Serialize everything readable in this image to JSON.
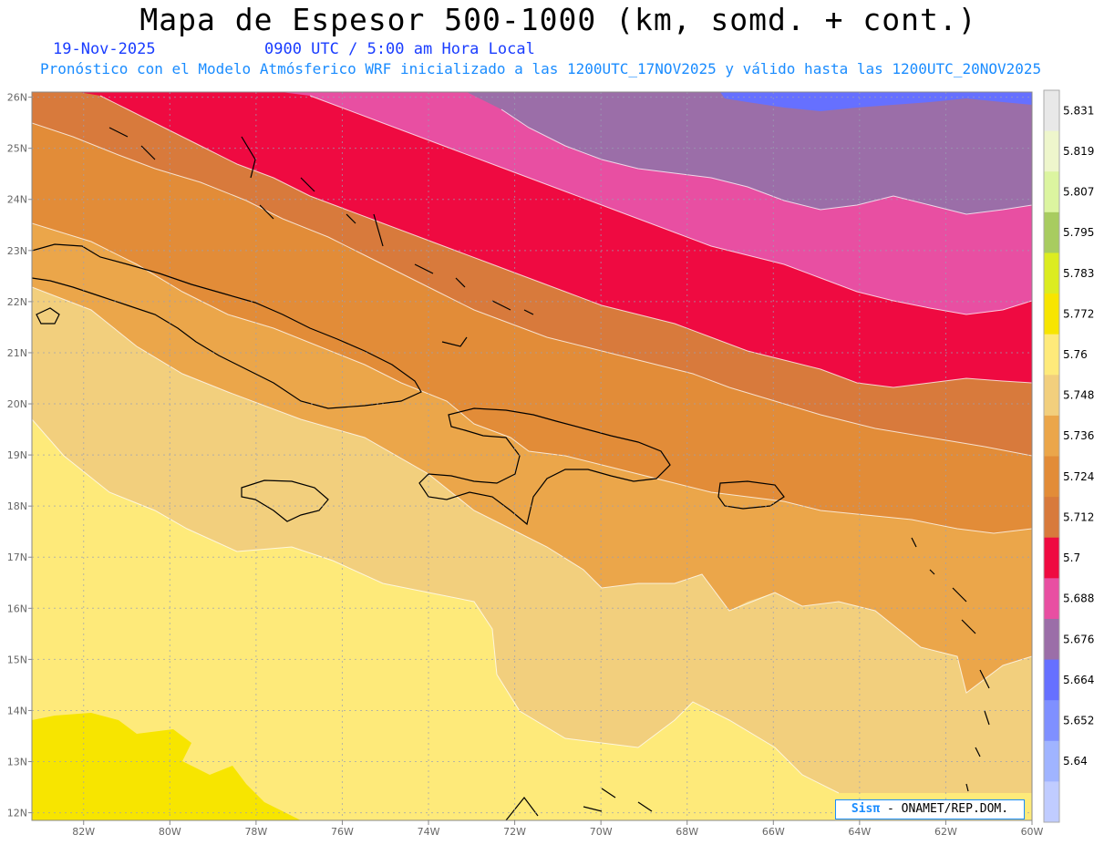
{
  "title": "Mapa de Espesor 500-1000 (km, somd. + cont.)",
  "date": "19-Nov-2025",
  "time": "0900 UTC / 5:00 am Hora Local",
  "description": "Pronóstico con el Modelo Atmósferico WRF inicializado a las 1200UTC_17NOV2025 y válido hasta las  1200UTC_20NOV2025",
  "credit": {
    "brand": "Sisπ",
    "text": "- ONAMET/REP.DOM."
  },
  "lat_labels": [
    "26N",
    "25N",
    "24N",
    "23N",
    "22N",
    "21N",
    "20N",
    "19N",
    "18N",
    "17N",
    "16N",
    "15N",
    "14N",
    "13N",
    "12N"
  ],
  "lon_labels": [
    "82W",
    "80W",
    "78W",
    "76W",
    "74W",
    "72W",
    "70W",
    "68W",
    "66W",
    "64W",
    "62W",
    "60W"
  ],
  "colorbar": {
    "labels": [
      "5.831",
      "5.819",
      "5.807",
      "5.795",
      "5.783",
      "5.772",
      "5.76",
      "5.748",
      "5.736",
      "5.724",
      "5.712",
      "5.7",
      "5.688",
      "5.676",
      "5.664",
      "5.652",
      "5.64"
    ],
    "colors": [
      "#e8e8e8",
      "#eef6cc",
      "#dcf5a0",
      "#a8cc60",
      "#dcec20",
      "#f7e500",
      "#feea7a",
      "#f2cf7d",
      "#eba64a",
      "#e28c38",
      "#d87a3c",
      "#ef0a41",
      "#e84fa2",
      "#9b6ea8",
      "#6670ff",
      "#7f90ff",
      "#a0b4ff",
      "#c0ccff"
    ]
  },
  "contour_fill_colors": {
    "purple": "#9b6ea8",
    "pink": "#e84fa2",
    "red": "#ef0a41",
    "dark_orange": "#d87a3c",
    "orange": "#e28c38",
    "light_orange": "#eba64a",
    "tan": "#f2cf7d",
    "light_yellow": "#feea7a",
    "yellow": "#f7e500",
    "blue": "#6670ff"
  }
}
